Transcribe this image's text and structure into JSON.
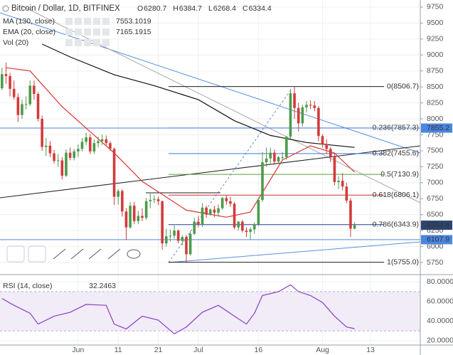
{
  "chart_data": [
    {
      "type": "candlestick",
      "title": "Bitcoin / Dollar, 1D, BITFINEX",
      "ohlc_legend": [
        {
          "label": "O",
          "value": 6280.7
        },
        {
          "label": "H",
          "value": 6384.7
        },
        {
          "label": "L",
          "value": 6268.4
        },
        {
          "label": "C",
          "value": 6334.4
        }
      ],
      "up_color": "#4c9a4c",
      "down_color": "#d33b3b",
      "x": [
        -19,
        -18,
        -17,
        -16,
        -15,
        -14,
        -13,
        -12,
        -11,
        -10,
        -9,
        -8,
        -7,
        -6,
        -5,
        -4,
        -3,
        -2,
        -1,
        0,
        1,
        2,
        3,
        4,
        5,
        6,
        7,
        8,
        9,
        10,
        11,
        12,
        13,
        14,
        15,
        16,
        17,
        18,
        19,
        20,
        21,
        22,
        23,
        24,
        25,
        26,
        27,
        28,
        29,
        30,
        31,
        32,
        33,
        34,
        35,
        36,
        37,
        38,
        39,
        40,
        41,
        42,
        43,
        44,
        45,
        46,
        47,
        48,
        49,
        50,
        51,
        52,
        53,
        54,
        55,
        56,
        57,
        58,
        59,
        60,
        61,
        62,
        63,
        64,
        65,
        66,
        67,
        68,
        69
      ],
      "open": [
        8480,
        8700,
        8670,
        8470,
        8340,
        8060,
        8230,
        8230,
        8520,
        8390,
        8000,
        7560,
        7580,
        7460,
        7340,
        7350,
        7110,
        7470,
        7390,
        7490,
        7530,
        7640,
        7710,
        7490,
        7620,
        7650,
        7680,
        7620,
        7530,
        6780,
        6870,
        6550,
        6300,
        6640,
        6400,
        6480,
        6450,
        6710,
        6730,
        6740,
        6710,
        6050,
        6160,
        6170,
        6250,
        6090,
        6150,
        5880,
        6200,
        6390,
        6350,
        6610,
        6500,
        6580,
        6530,
        6600,
        6760,
        6710,
        6670,
        6300,
        6390,
        6250,
        6230,
        6270,
        6350,
        6730,
        7320,
        7380,
        7470,
        7330,
        7400,
        7400,
        7720,
        8400,
        8170,
        7930,
        8180,
        8220,
        8210,
        8170,
        7730,
        7600,
        7530,
        7410,
        7010,
        7030,
        6940,
        6720,
        6280.7
      ],
      "high": [
        8800,
        8880,
        8720,
        8600,
        8400,
        8300,
        8350,
        8600,
        8600,
        8420,
        8050,
        7700,
        7650,
        7510,
        7450,
        7400,
        7520,
        7550,
        7530,
        7600,
        7700,
        7780,
        7760,
        7680,
        7720,
        7750,
        7740,
        7650,
        7550,
        6900,
        6900,
        6600,
        6700,
        6700,
        6560,
        6600,
        6760,
        6830,
        6800,
        6780,
        6720,
        6280,
        6270,
        6330,
        6270,
        6180,
        6180,
        6240,
        6450,
        6480,
        6680,
        6640,
        6600,
        6640,
        6660,
        6780,
        6800,
        6780,
        6700,
        6400,
        6420,
        6300,
        6300,
        6380,
        6760,
        7480,
        7550,
        7550,
        7520,
        7420,
        7480,
        7730,
        8470,
        8500,
        8250,
        8220,
        8280,
        8290,
        8280,
        8200,
        7760,
        7680,
        7560,
        7450,
        7100,
        7150,
        7000,
        6760,
        6384.7
      ],
      "low": [
        8450,
        8550,
        8350,
        8300,
        7950,
        8000,
        8150,
        8200,
        8300,
        7960,
        7500,
        7420,
        7400,
        7300,
        7250,
        7050,
        7090,
        7350,
        7350,
        7400,
        7490,
        7590,
        7450,
        7450,
        7550,
        7590,
        7580,
        7500,
        6650,
        6660,
        6470,
        6100,
        6280,
        6350,
        6350,
        6400,
        6420,
        6600,
        6680,
        6650,
        5950,
        6000,
        6080,
        6120,
        6050,
        6020,
        5760,
        5860,
        6180,
        6300,
        6310,
        6450,
        6480,
        6460,
        6470,
        6580,
        6650,
        6620,
        6270,
        6250,
        6220,
        6150,
        6110,
        6200,
        6320,
        6700,
        7250,
        7300,
        7300,
        7290,
        7350,
        7360,
        7690,
        8000,
        7800,
        7880,
        8100,
        8150,
        8120,
        7650,
        7550,
        7450,
        7320,
        6960,
        6900,
        6880,
        6680,
        6150,
        6268.4
      ],
      "close": [
        8700,
        8670,
        8470,
        8340,
        8060,
        8230,
        8230,
        8520,
        8390,
        8000,
        7560,
        7580,
        7460,
        7340,
        7350,
        7110,
        7470,
        7390,
        7490,
        7530,
        7640,
        7710,
        7490,
        7620,
        7650,
        7680,
        7620,
        7530,
        6780,
        6870,
        6550,
        6300,
        6640,
        6400,
        6480,
        6450,
        6710,
        6730,
        6740,
        6710,
        6050,
        6160,
        6170,
        6250,
        6090,
        6150,
        5880,
        6200,
        6390,
        6350,
        6610,
        6500,
        6580,
        6530,
        6600,
        6760,
        6710,
        6670,
        6300,
        6390,
        6250,
        6230,
        6270,
        6350,
        6730,
        7320,
        7380,
        7470,
        7330,
        7400,
        7400,
        7720,
        8400,
        8170,
        7930,
        8180,
        8220,
        8210,
        8170,
        7730,
        7600,
        7530,
        7410,
        7010,
        7030,
        6940,
        6720,
        6280.7,
        6334.4
      ],
      "indicators": [
        {
          "name": "MA (130, close)",
          "value": 7553.1019,
          "color": "#111111",
          "value_color": "#111111",
          "x": [
            -9,
            -2,
            9,
            19,
            30,
            39,
            48,
            57,
            69
          ],
          "values": [
            9170,
            8970,
            8690,
            8520,
            8300,
            7970,
            7740,
            7630,
            7553
          ]
        },
        {
          "name": "EMA (20, close)",
          "value": 7165.1915,
          "color": "#e03030",
          "value_color": "#e03030",
          "x": [
            -18,
            -12,
            -4,
            9,
            16,
            27,
            37,
            43,
            51,
            58,
            64,
            69
          ],
          "values": [
            8800,
            8750,
            8190,
            7465,
            7020,
            6570,
            6460,
            6540,
            7355,
            7577,
            7465,
            7165
          ]
        },
        {
          "name": "Vol (20)"
        }
      ],
      "fibonacci": [
        {
          "label": "0(8506.7)",
          "value": 8506.7,
          "color": "#222222"
        },
        {
          "label": "0.236(7857.3)",
          "value": 7857.3,
          "color": "#3c78d8"
        },
        {
          "label": "0.382(7455.6)",
          "value": 7455.6,
          "color": "#3c78d8"
        },
        {
          "label": "0.5(7130.9)",
          "value": 7130.9,
          "color": "#5a9e3a"
        },
        {
          "label": "0.618(6806.1)",
          "value": 6806.1,
          "color": "#d03030"
        },
        {
          "label": "0.786(6343.9)",
          "value": 6343.9,
          "color": "#1c3f94"
        },
        {
          "label": "1(5755.0)",
          "value": 5755,
          "color": "#222222"
        }
      ],
      "levels": [
        {
          "value": 7855.2,
          "color": "#4a86e0",
          "line": true
        },
        {
          "value": 6334.4,
          "color": "#2c4470",
          "line": false
        },
        {
          "value": 6107.9,
          "color": "#4a86e0",
          "line": true
        }
      ],
      "xlim": [
        -19.5,
        85.4
      ],
      "ylim": [
        5572,
        9861
      ],
      "yticks": [
        9750,
        9500,
        9250,
        9000,
        8750,
        8500,
        8250,
        8000,
        7750,
        7500,
        7250,
        7000,
        6750,
        6500,
        6250,
        6000,
        5750
      ],
      "xticks": [
        {
          "value": 0,
          "label": "Jun"
        },
        {
          "value": 10,
          "label": "11"
        },
        {
          "value": 20,
          "label": "21"
        },
        {
          "value": 30,
          "label": "Jul"
        },
        {
          "value": 45,
          "label": "16"
        },
        {
          "value": 61,
          "label": "Aug"
        },
        {
          "value": 73,
          "label": "13"
        }
      ],
      "grid": true
    },
    {
      "type": "line",
      "title": "RSI (14, close)",
      "value": 32.2463,
      "color": "#8a3fc0",
      "x": [
        -19,
        -16,
        -12,
        -10,
        -6,
        -2,
        2,
        7,
        9,
        12,
        16,
        20,
        24,
        27,
        31,
        35,
        39,
        42,
        44,
        46,
        50,
        53,
        55,
        58,
        61,
        64,
        67,
        69
      ],
      "values": [
        63,
        56,
        48,
        37,
        45,
        49,
        57,
        56,
        37,
        32,
        45,
        41,
        27,
        34,
        49,
        56,
        45,
        37,
        48,
        66,
        70,
        77,
        70,
        66,
        59,
        45,
        34,
        32.2463
      ],
      "ylim": [
        15.6,
        86.6
      ],
      "yticks": [
        {
          "value": 80,
          "label": "80.0000"
        },
        {
          "value": 60,
          "label": "60.0000"
        },
        {
          "value": 40,
          "label": "40.0000"
        },
        {
          "value": 20,
          "label": "20.0000"
        }
      ],
      "band": [
        30,
        70
      ],
      "band_color": "#f1ecf8",
      "grid": true
    }
  ]
}
